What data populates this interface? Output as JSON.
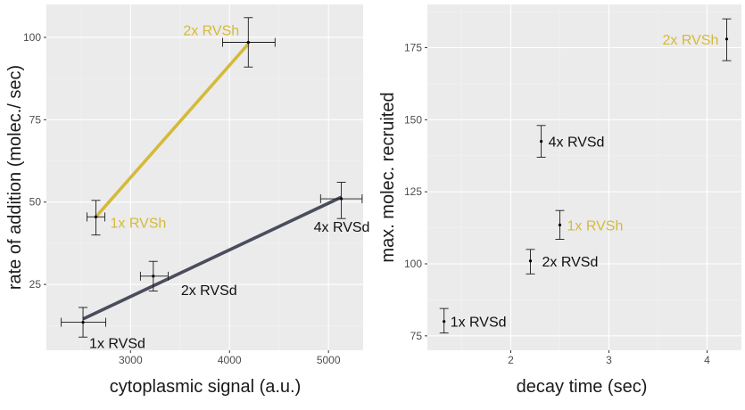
{
  "colors": {
    "panel_bg": "#ebebeb",
    "grid_major": "#ffffff",
    "grid_minor": "#f3f3f3",
    "rvsh": "#d4ba3a",
    "rvsd": "#4a4d5c",
    "errorbar": "#1a1a1a",
    "label_dark": "#111111"
  },
  "chart_data": [
    {
      "type": "scatter",
      "panel": "left",
      "xlabel": "cytoplasmic signal (a.u.)",
      "ylabel": "rate of addition (molec./ sec)",
      "xlim": [
        2150,
        5350
      ],
      "ylim": [
        5,
        110
      ],
      "xticks": [
        3000,
        4000,
        5000
      ],
      "yticks": [
        25,
        50,
        75,
        100
      ],
      "xtick_labels": [
        "3000",
        "4000",
        "5000"
      ],
      "ytick_labels": [
        "25",
        "50",
        "75",
        "100"
      ],
      "grid": true,
      "points": [
        {
          "label": "1x RVSd",
          "x": 2520,
          "y": 13.5,
          "x_err": [
            2300,
            2750
          ],
          "y_err": [
            9,
            18
          ],
          "group": "RVSd"
        },
        {
          "label": "2x RVSd",
          "x": 3230,
          "y": 27.5,
          "x_err": [
            3100,
            3380
          ],
          "y_err": [
            23,
            32
          ],
          "group": "RVSd"
        },
        {
          "label": "4x RVSd",
          "x": 5130,
          "y": 51,
          "x_err": [
            4920,
            5340
          ],
          "y_err": [
            45,
            56
          ],
          "group": "RVSd"
        },
        {
          "label": "1x RVSh",
          "x": 2650,
          "y": 45.5,
          "x_err": [
            2560,
            2740
          ],
          "y_err": [
            40,
            50.5
          ],
          "group": "RVSh"
        },
        {
          "label": "2x RVSh",
          "x": 4190,
          "y": 98.5,
          "x_err": [
            3930,
            4460
          ],
          "y_err": [
            91,
            106
          ],
          "group": "RVSh"
        }
      ],
      "lines": [
        {
          "group": "RVSd",
          "x": [
            2520,
            5130
          ],
          "y": [
            14.5,
            51.5
          ]
        },
        {
          "group": "RVSh",
          "x": [
            2650,
            4190
          ],
          "y": [
            45.5,
            98
          ]
        }
      ]
    },
    {
      "type": "scatter",
      "panel": "right",
      "xlabel": "decay time (sec)",
      "ylabel": "max. molec. recruited",
      "xlim": [
        1.15,
        4.35
      ],
      "ylim": [
        70,
        190
      ],
      "xticks": [
        2,
        3,
        4
      ],
      "yticks": [
        75,
        100,
        125,
        150,
        175
      ],
      "xtick_labels": [
        "2",
        "3",
        "4"
      ],
      "ytick_labels": [
        "75",
        "100",
        "125",
        "150",
        "175"
      ],
      "grid": true,
      "points": [
        {
          "label": "1x RVSd",
          "x": 1.32,
          "y": 80,
          "y_err": [
            76,
            84.5
          ],
          "group": "RVSd"
        },
        {
          "label": "2x RVSd",
          "x": 2.2,
          "y": 101,
          "y_err": [
            96.5,
            105
          ],
          "group": "RVSd"
        },
        {
          "label": "4x RVSd",
          "x": 2.31,
          "y": 142.5,
          "y_err": [
            137,
            148
          ],
          "group": "RVSd"
        },
        {
          "label": "1x RVSh",
          "x": 2.5,
          "y": 113.5,
          "y_err": [
            108.5,
            118.5
          ],
          "group": "RVSh"
        },
        {
          "label": "2x RVSh",
          "x": 4.2,
          "y": 178,
          "y_err": [
            170.5,
            185
          ],
          "group": "RVSh"
        }
      ]
    }
  ]
}
